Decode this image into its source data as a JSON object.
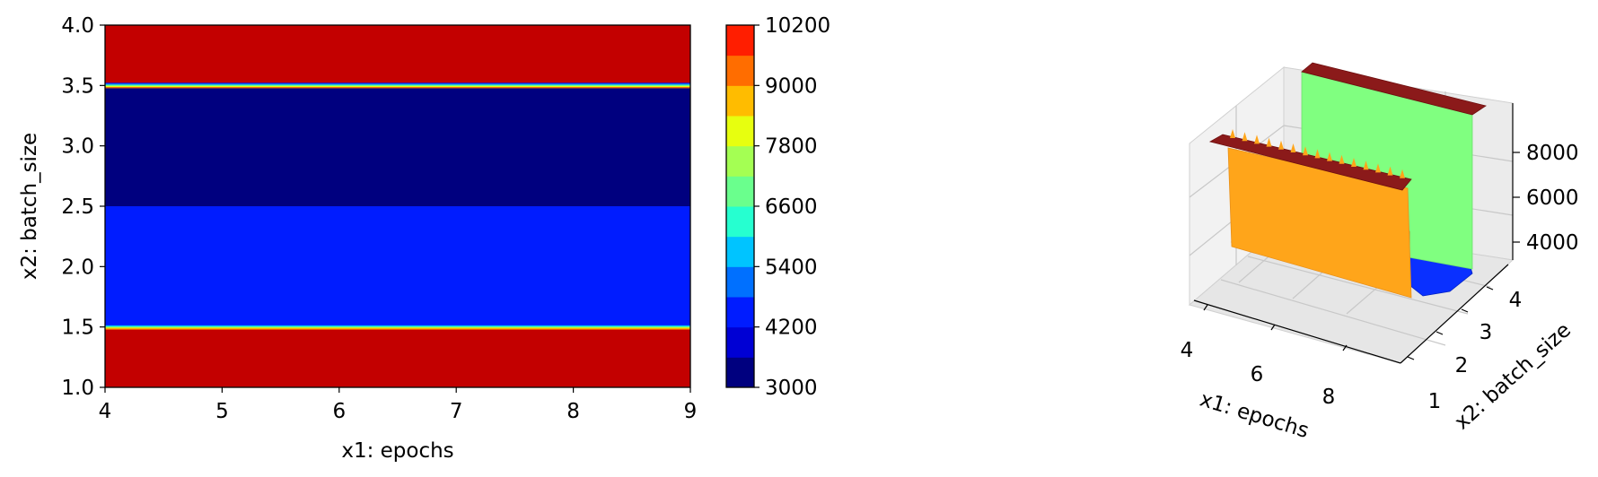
{
  "chart_data": [
    {
      "type": "heatmap",
      "subtype": "filled-contour",
      "xlabel": "x1: epochs",
      "ylabel": "x2: batch_size",
      "xlim": [
        4,
        9
      ],
      "ylim": [
        1,
        4
      ],
      "xticks": [
        "4",
        "5",
        "6",
        "7",
        "8",
        "9"
      ],
      "yticks": [
        "1.0",
        "1.5",
        "2.0",
        "2.5",
        "3.0",
        "3.5",
        "4.0"
      ],
      "bands": [
        {
          "y_from": 1.0,
          "y_to": 1.5,
          "value": 10200
        },
        {
          "y_from": 1.5,
          "y_to": 2.5,
          "value": 4600
        },
        {
          "y_from": 2.5,
          "y_to": 3.5,
          "value": 3000
        },
        {
          "y_from": 3.5,
          "y_to": 4.0,
          "value": 10200
        }
      ],
      "colorbar": {
        "min": 3000,
        "max": 10200,
        "step": 600,
        "ticks": [
          "3000",
          "4200",
          "5400",
          "6600",
          "7800",
          "9000",
          "10200"
        ],
        "colormap": "jet",
        "colors": [
          "#00007f",
          "#0000d4",
          "#001cff",
          "#0070ff",
          "#00c4ff",
          "#26ffd0",
          "#6aff8d",
          "#a4ff53",
          "#e7ff0f",
          "#ffbc00",
          "#ff6d00",
          "#ff1e00",
          "#c30000"
        ]
      }
    },
    {
      "type": "surface-3d",
      "xlabel": "x1: epochs",
      "ylabel": "x2: batch_size",
      "xticks": [
        "4",
        "6",
        "8"
      ],
      "yticks": [
        "1",
        "2",
        "3",
        "4"
      ],
      "zticks": [
        "4000",
        "6000",
        "8000"
      ],
      "xlim": [
        4,
        9
      ],
      "ylim": [
        1,
        4
      ],
      "zlim": [
        3000,
        9400
      ],
      "panels": [
        {
          "region": "low batch_size",
          "value": 7800,
          "color": "#ffa01a"
        },
        {
          "region": "high batch_size",
          "value": 6900,
          "color": "#80ff80"
        },
        {
          "region": "ridges",
          "value": 9400,
          "color": "#8b1a1a"
        },
        {
          "region": "middle trough",
          "value": 3600,
          "color": "#0a30ff"
        }
      ]
    }
  ]
}
